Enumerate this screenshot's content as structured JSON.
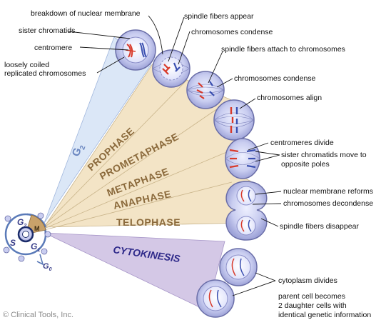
{
  "labels": {
    "breakdown": "breakdown of nuclear membrane",
    "sister_chromatids": "sister chromatids",
    "centromere": "centromere",
    "loosely_coiled_1": "loosely coiled",
    "loosely_coiled_2": "replicated chromosomes",
    "spindle_appear": "spindle fibers appear",
    "chrom_condense_1": "chromosomes condense",
    "spindle_attach": "spindle fibers attach to chromosomes",
    "chrom_condense_2": "chromosomes condense",
    "chrom_align": "chromosomes align",
    "centromeres_divide": "centromeres divide",
    "sister_move_1": "sister chromatids move to",
    "sister_move_2": "opposite poles",
    "nuclear_reforms": "nuclear membrane reforms",
    "chrom_decondense": "chromosomes decondense",
    "spindle_disappear": "spindle fibers disappear",
    "cytoplasm_divides": "cytoplasm divides",
    "parent_1": "parent cell becomes",
    "parent_2": "2 daughter cells with",
    "parent_3": "identical genetic information"
  },
  "phases": {
    "g2": "G",
    "g2_sub": "2",
    "prophase": "PROPHASE",
    "prometaphase": "PROMETAPHASE",
    "metaphase": "METAPHASE",
    "anaphase": "ANAPHASE",
    "telophase": "TELOPHASE",
    "cytokinesis": "CYTOKINESIS"
  },
  "cycle": {
    "g2": "G",
    "g2_sub": "2",
    "s": "S",
    "g1": "G",
    "g1_sub": "1",
    "g0": "G",
    "g0_sub": "0",
    "m": "M"
  },
  "credit": "© Clinical Tools, Inc.",
  "colors": {
    "g2_wedge": "#dbe7f7",
    "phase_wedge": "#f3e4c6",
    "cyto_wedge": "#d4c8e6",
    "phase_text": "#8b6a3c",
    "cyto_text": "#2f2a8a",
    "g2_text": "#6a86c0",
    "cell_fill": "#c9cdf0",
    "cell_stroke": "#6a6ea8",
    "chromosome_red": "#d83a2a",
    "chromosome_blue": "#3a4fb0"
  }
}
